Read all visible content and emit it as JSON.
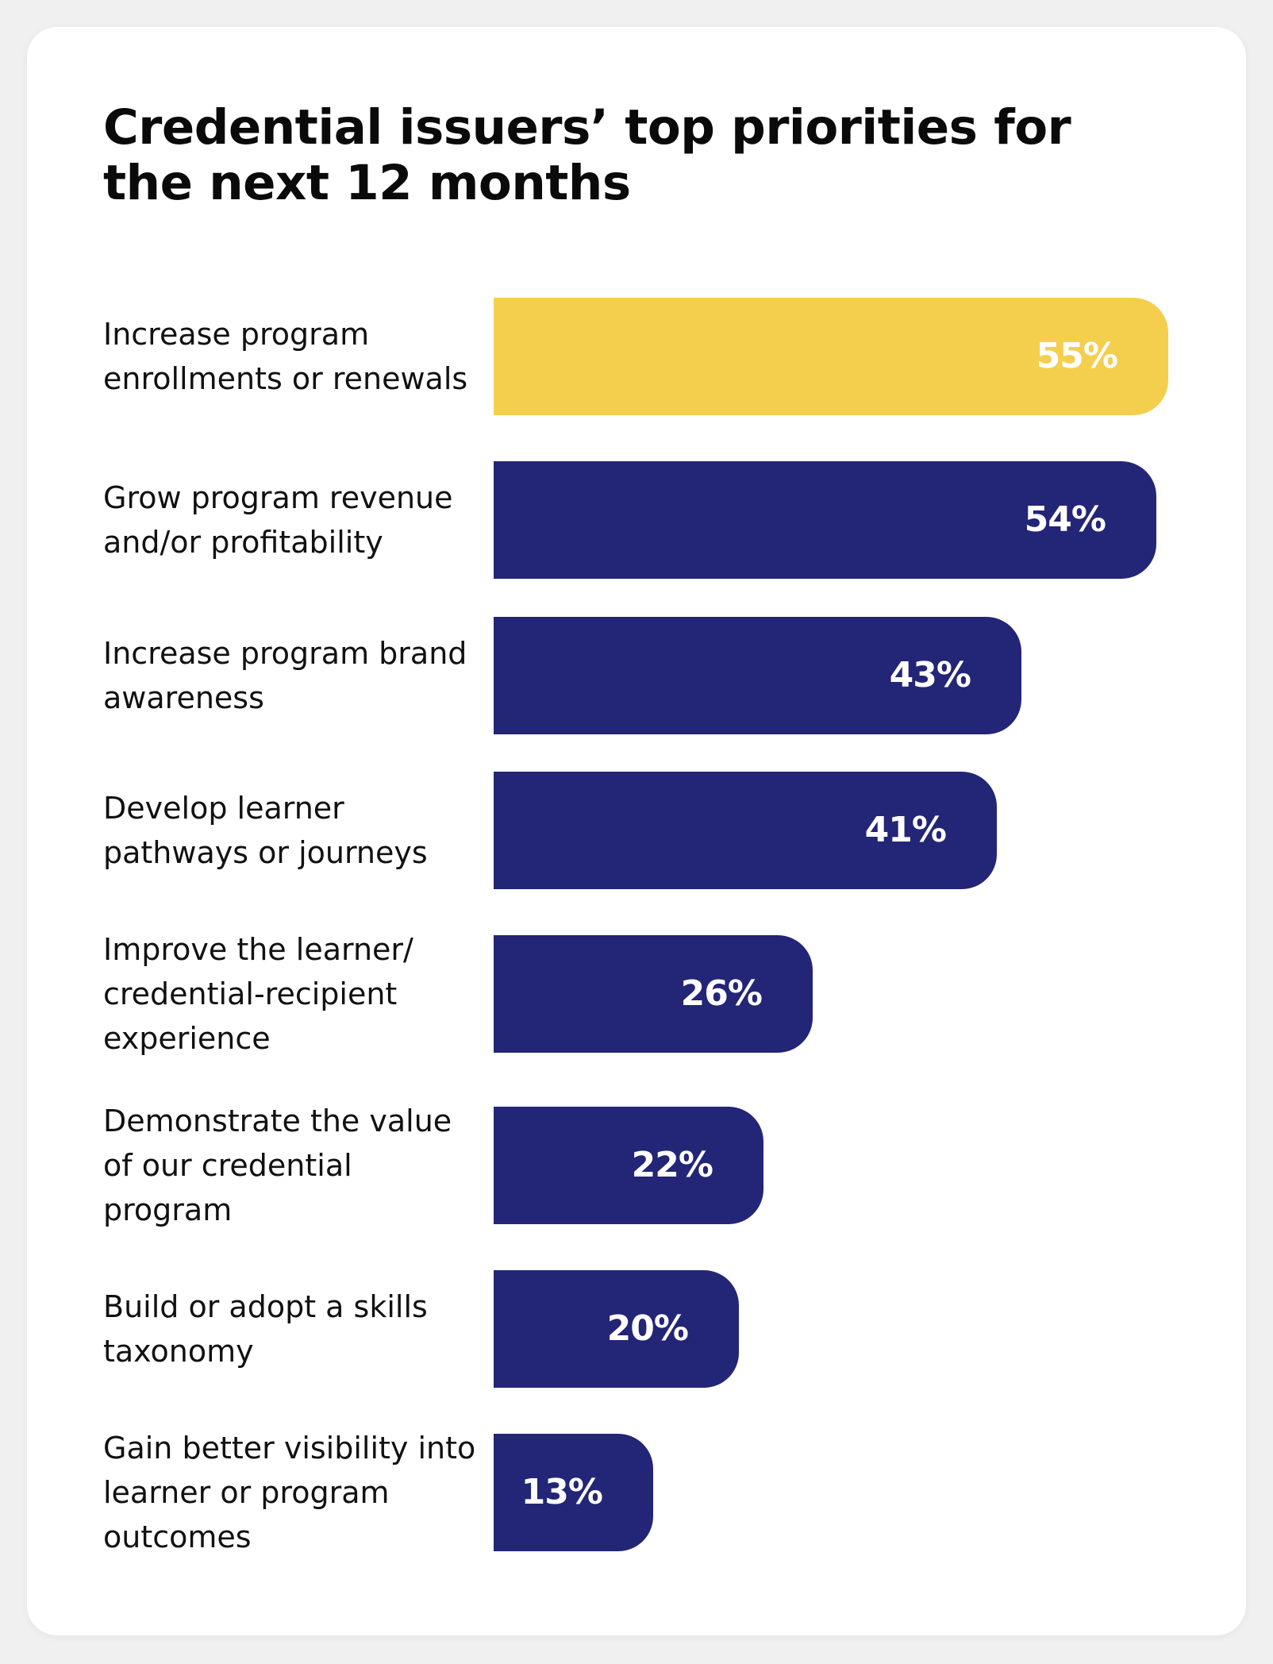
{
  "chart_data": {
    "type": "bar",
    "orientation": "horizontal",
    "title": "Credential issuers’ top priorities for the next 12 months",
    "xlabel": "",
    "ylabel": "",
    "xlim": [
      0,
      55
    ],
    "categories": [
      "Increase program enrollments or renewals",
      "Grow program revenue and/or profitability",
      "Increase program brand awareness",
      "Develop learner pathways or journeys",
      "Improve the learner/ credential-recipient experience",
      "Demonstrate the value of our credential program",
      "Build or adopt a skills taxonomy",
      "Gain better visibility into learner or program outcomes"
    ],
    "values": [
      55,
      54,
      43,
      41,
      26,
      22,
      20,
      13
    ],
    "value_labels": [
      "55%",
      "54%",
      "43%",
      "41%",
      "26%",
      "22%",
      "20%",
      "13%"
    ],
    "highlight_index": 0,
    "colors": {
      "highlight": "#F4CF4E",
      "default": "#232576",
      "label_text": "#FFFFFF"
    }
  }
}
